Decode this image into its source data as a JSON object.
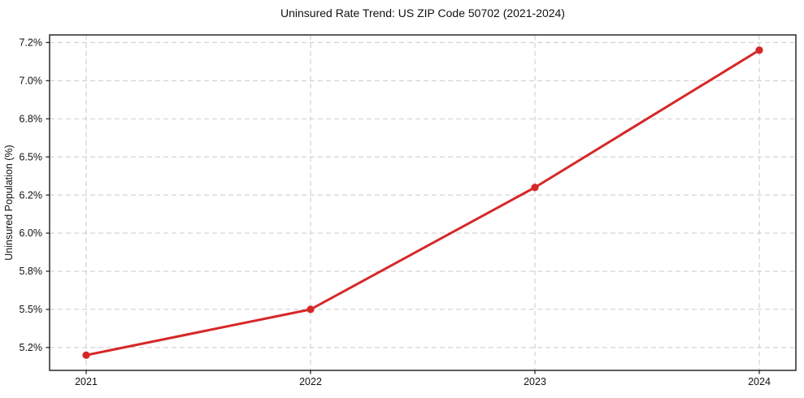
{
  "chart_data": {
    "type": "line",
    "title": "Uninsured Rate Trend: US ZIP Code 50702 (2021-2024)",
    "ylabel": "Uninsured Population (%)",
    "xlabel": "",
    "categories": [
      "2021",
      "2022",
      "2023",
      "2024"
    ],
    "x": [
      2021,
      2022,
      2023,
      2024
    ],
    "series": [
      {
        "name": "Uninsured rate",
        "values": [
          5.2,
          5.5,
          6.3,
          7.2
        ],
        "value_labels": [
          "5.2%",
          "5.5%",
          "6.3%",
          "7.2%"
        ]
      }
    ],
    "ylim": [
      5.1,
      7.3
    ],
    "y_tick_values": [
      5.25,
      5.5,
      5.75,
      6.0,
      6.25,
      6.5,
      6.75,
      7.0,
      7.25
    ],
    "y_tick_labels": [
      "5.2%",
      "5.5%",
      "5.8%",
      "6.0%",
      "6.2%",
      "6.5%",
      "6.8%",
      "7.0%",
      "7.2%"
    ],
    "grid": true,
    "grid_style": "dashed",
    "legend": "none",
    "colors": {
      "line": "#d62728",
      "marker": "#d62728",
      "grid": "#c9c9c9",
      "axis": "#1a1a1a",
      "text": "#111111",
      "background": "#ffffff"
    }
  }
}
